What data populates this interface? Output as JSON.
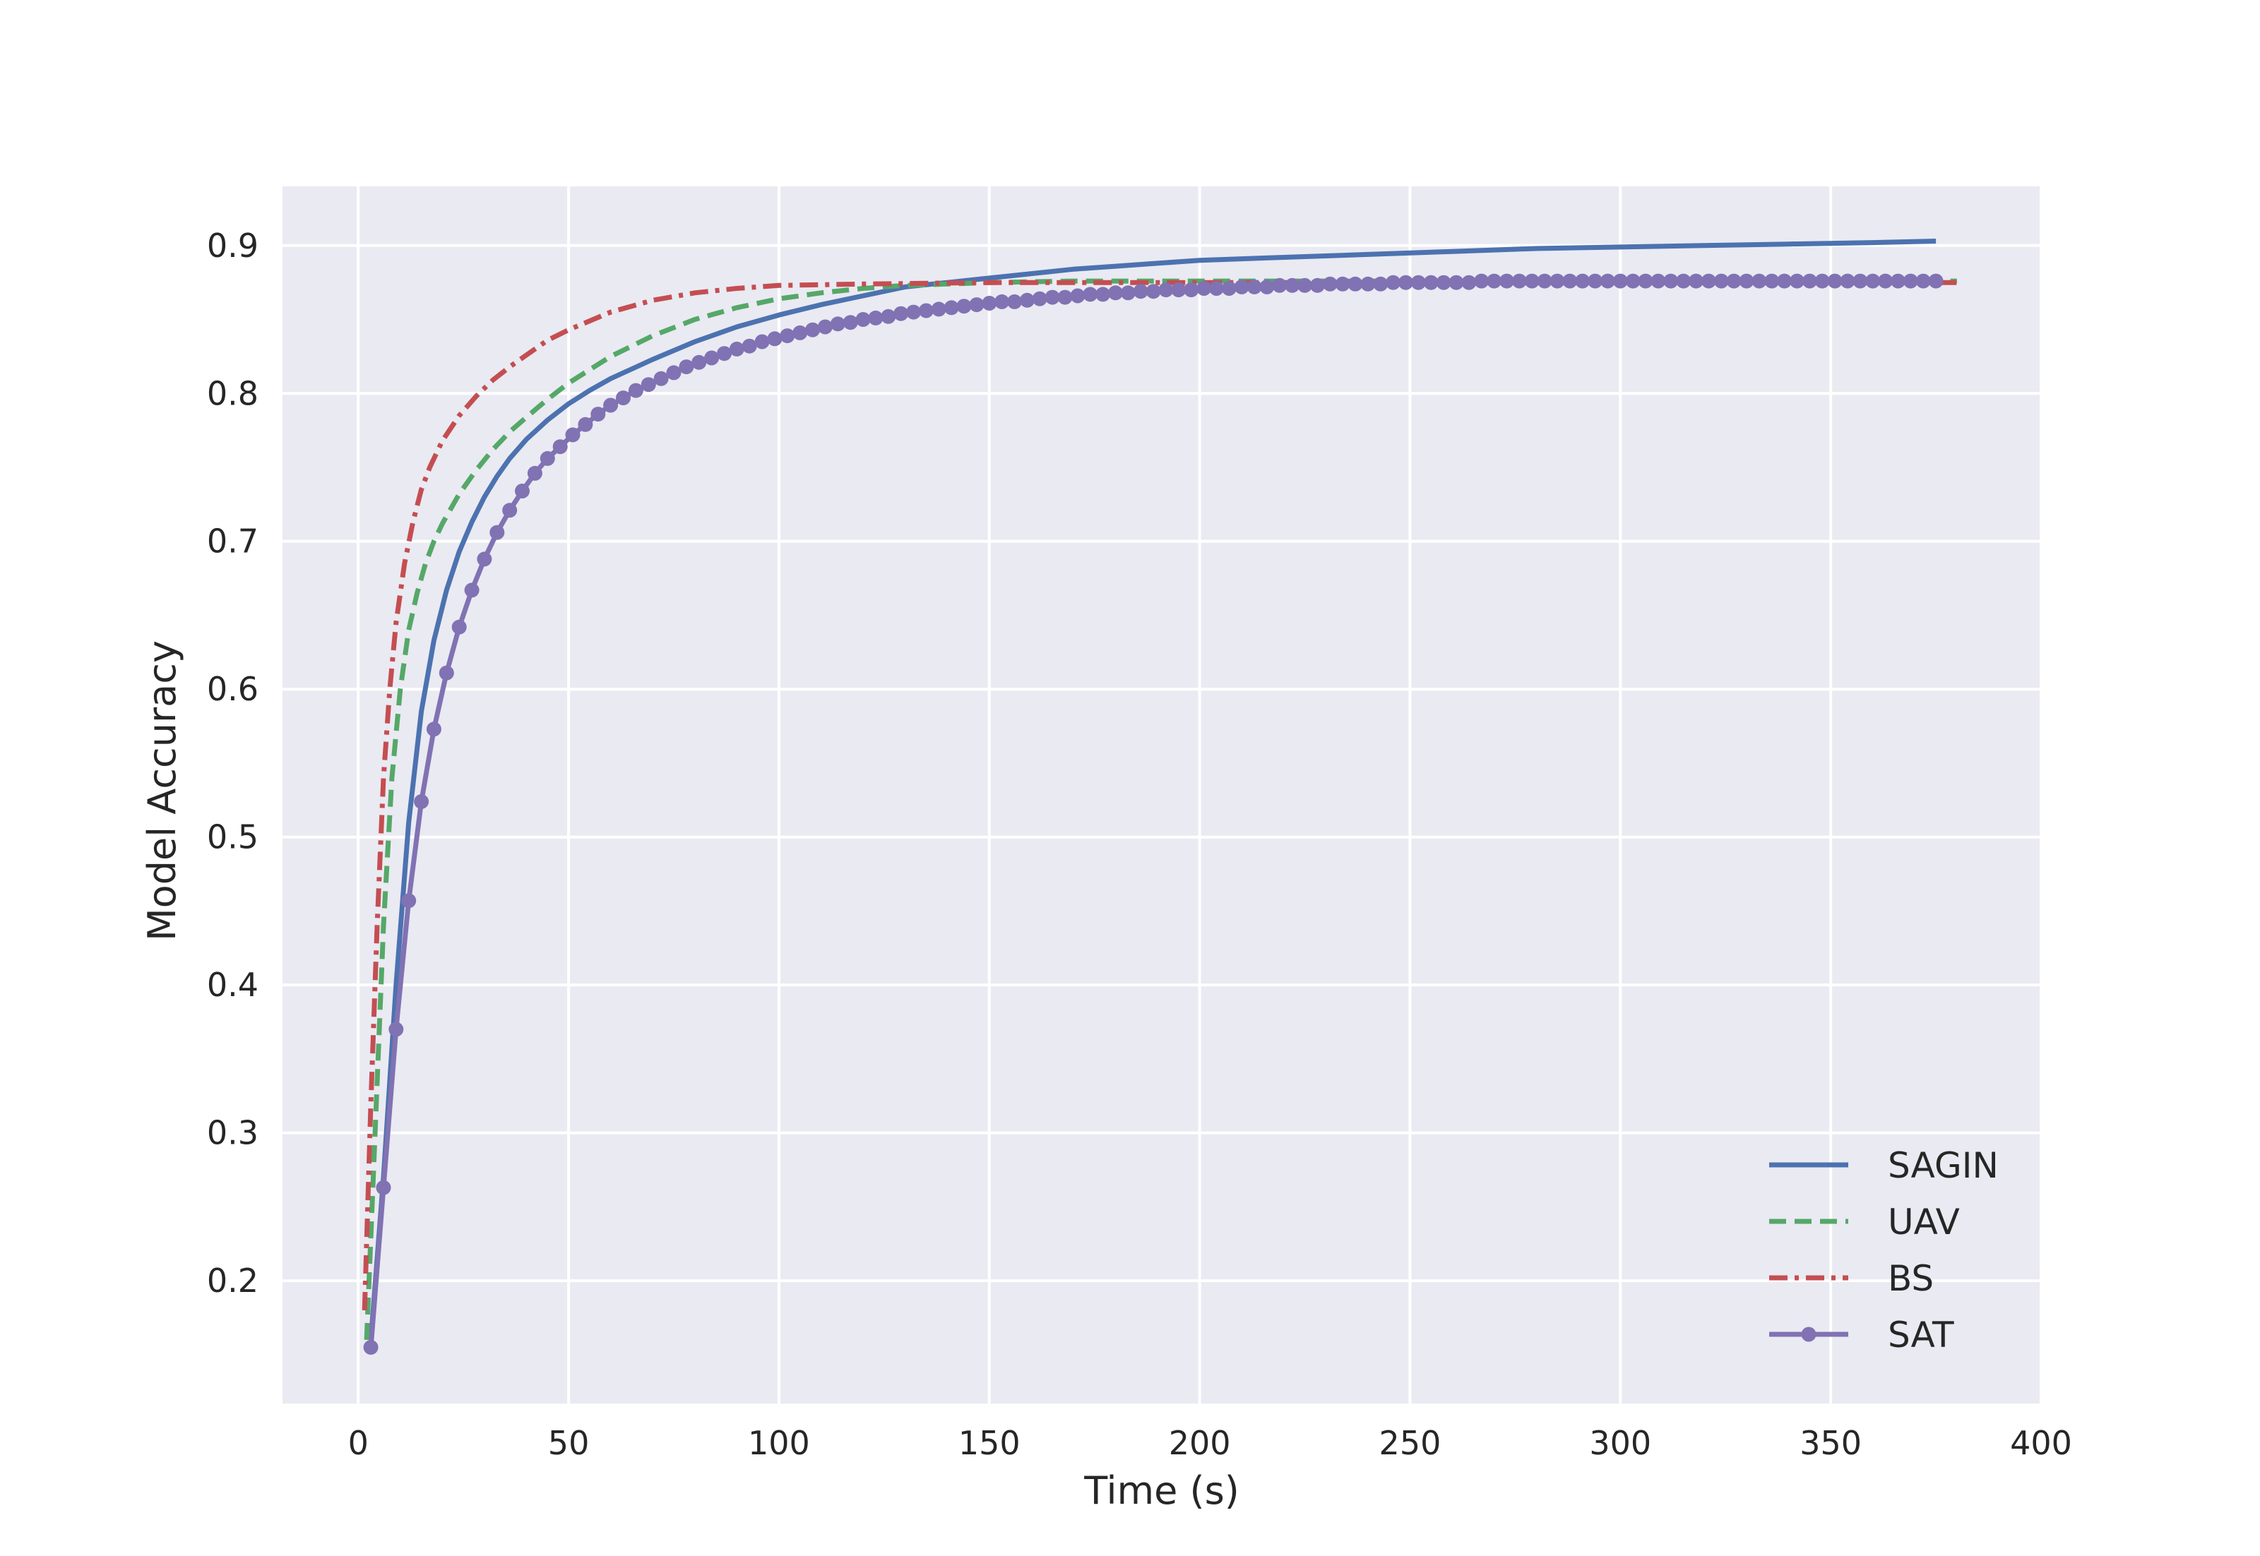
{
  "chart_data": {
    "type": "line",
    "title": "",
    "xlabel": "Time (s)",
    "ylabel": "Model Accuracy",
    "xlim": [
      -18,
      400
    ],
    "ylim": [
      0.117,
      0.94
    ],
    "xticks": [
      0,
      50,
      100,
      150,
      200,
      250,
      300,
      350,
      400
    ],
    "yticks": [
      0.2,
      0.3,
      0.4,
      0.5,
      0.6,
      0.7,
      0.8,
      0.9
    ],
    "xtick_labels": [
      "0",
      "50",
      "100",
      "150",
      "200",
      "250",
      "300",
      "350",
      "400"
    ],
    "ytick_labels": [
      "0.2",
      "0.3",
      "0.4",
      "0.5",
      "0.6",
      "0.7",
      "0.8",
      "0.9"
    ],
    "grid": true,
    "background_color": "#eaeaf2",
    "legend": {
      "position": "lower-right"
    },
    "series": [
      {
        "name": "SAGIN",
        "color": "#4c72b0",
        "style": "solid",
        "marker": "none",
        "x": [
          3,
          6,
          9,
          12,
          15,
          18,
          21,
          24,
          27,
          30,
          33,
          36,
          40,
          45,
          50,
          55,
          60,
          70,
          80,
          90,
          100,
          110,
          120,
          130,
          140,
          150,
          160,
          170,
          180,
          190,
          200,
          220,
          240,
          260,
          280,
          300,
          320,
          340,
          360,
          375
        ],
        "y": [
          0.16,
          0.27,
          0.4,
          0.51,
          0.585,
          0.633,
          0.667,
          0.693,
          0.713,
          0.73,
          0.744,
          0.756,
          0.769,
          0.782,
          0.793,
          0.802,
          0.81,
          0.823,
          0.835,
          0.845,
          0.853,
          0.86,
          0.866,
          0.872,
          0.875,
          0.878,
          0.881,
          0.884,
          0.886,
          0.888,
          0.89,
          0.892,
          0.894,
          0.896,
          0.898,
          0.899,
          0.9,
          0.901,
          0.902,
          0.903
        ]
      },
      {
        "name": "UAV",
        "color": "#55a868",
        "style": "dashed",
        "marker": "none",
        "x": [
          2,
          4,
          6,
          8,
          10,
          12,
          14,
          16,
          18,
          20,
          24,
          28,
          32,
          36,
          40,
          45,
          50,
          60,
          70,
          80,
          90,
          100,
          110,
          120,
          130,
          140,
          150,
          170,
          200,
          250,
          300,
          350,
          380
        ],
        "y": [
          0.16,
          0.3,
          0.44,
          0.54,
          0.6,
          0.64,
          0.665,
          0.685,
          0.7,
          0.712,
          0.732,
          0.748,
          0.762,
          0.774,
          0.784,
          0.796,
          0.807,
          0.825,
          0.839,
          0.85,
          0.858,
          0.864,
          0.868,
          0.871,
          0.873,
          0.874,
          0.875,
          0.876,
          0.876,
          0.876,
          0.876,
          0.876,
          0.876
        ]
      },
      {
        "name": "BS",
        "color": "#c44e52",
        "style": "dashdot",
        "marker": "none",
        "x": [
          1.5,
          3,
          4.5,
          6,
          7.5,
          9,
          11,
          13,
          15,
          17,
          20,
          24,
          28,
          32,
          36,
          40,
          45,
          50,
          60,
          70,
          80,
          90,
          100,
          120,
          150,
          200,
          250,
          300,
          350,
          380
        ],
        "y": [
          0.18,
          0.32,
          0.44,
          0.54,
          0.6,
          0.645,
          0.685,
          0.713,
          0.735,
          0.75,
          0.768,
          0.785,
          0.798,
          0.809,
          0.818,
          0.826,
          0.836,
          0.843,
          0.855,
          0.863,
          0.868,
          0.871,
          0.873,
          0.874,
          0.875,
          0.875,
          0.875,
          0.875,
          0.875,
          0.875
        ]
      },
      {
        "name": "SAT",
        "color": "#8172b3",
        "style": "solid",
        "marker": "circle",
        "x": [
          3,
          6,
          9,
          12,
          15,
          18,
          21,
          24,
          27,
          30,
          33,
          36,
          39,
          42,
          45,
          48,
          51,
          54,
          57,
          60,
          63,
          66,
          69,
          72,
          75,
          78,
          81,
          84,
          87,
          90,
          93,
          96,
          99,
          102,
          105,
          108,
          111,
          114,
          117,
          120,
          123,
          126,
          129,
          132,
          135,
          138,
          141,
          144,
          147,
          150,
          153,
          156,
          159,
          162,
          165,
          168,
          171,
          174,
          177,
          180,
          183,
          186,
          189,
          192,
          195,
          198,
          201,
          204,
          207,
          210,
          213,
          216,
          219,
          222,
          225,
          228,
          231,
          234,
          237,
          240,
          243,
          246,
          249,
          252,
          255,
          258,
          261,
          264,
          267,
          270,
          273,
          276,
          279,
          282,
          285,
          288,
          291,
          294,
          297,
          300,
          303,
          306,
          309,
          312,
          315,
          318,
          321,
          324,
          327,
          330,
          333,
          336,
          339,
          342,
          345,
          348,
          351,
          354,
          357,
          360,
          363,
          366,
          369,
          372,
          375
        ],
        "y": [
          0.155,
          0.263,
          0.37,
          0.457,
          0.524,
          0.573,
          0.611,
          0.642,
          0.667,
          0.688,
          0.706,
          0.721,
          0.734,
          0.746,
          0.756,
          0.764,
          0.772,
          0.779,
          0.786,
          0.792,
          0.797,
          0.802,
          0.806,
          0.81,
          0.814,
          0.818,
          0.821,
          0.824,
          0.827,
          0.83,
          0.832,
          0.835,
          0.837,
          0.839,
          0.841,
          0.843,
          0.845,
          0.847,
          0.848,
          0.85,
          0.851,
          0.852,
          0.854,
          0.855,
          0.856,
          0.857,
          0.858,
          0.859,
          0.86,
          0.861,
          0.862,
          0.862,
          0.863,
          0.864,
          0.865,
          0.865,
          0.866,
          0.867,
          0.867,
          0.868,
          0.868,
          0.869,
          0.869,
          0.87,
          0.87,
          0.87,
          0.871,
          0.871,
          0.871,
          0.872,
          0.872,
          0.872,
          0.873,
          0.873,
          0.873,
          0.873,
          0.874,
          0.874,
          0.874,
          0.874,
          0.874,
          0.875,
          0.875,
          0.875,
          0.875,
          0.875,
          0.875,
          0.875,
          0.876,
          0.876,
          0.876,
          0.876,
          0.876,
          0.876,
          0.876,
          0.876,
          0.876,
          0.876,
          0.876,
          0.876,
          0.876,
          0.876,
          0.876,
          0.876,
          0.876,
          0.876,
          0.876,
          0.876,
          0.876,
          0.876,
          0.876,
          0.876,
          0.876,
          0.876,
          0.876,
          0.876,
          0.876,
          0.876,
          0.876,
          0.876,
          0.876,
          0.876,
          0.876,
          0.876,
          0.876
        ]
      }
    ]
  }
}
